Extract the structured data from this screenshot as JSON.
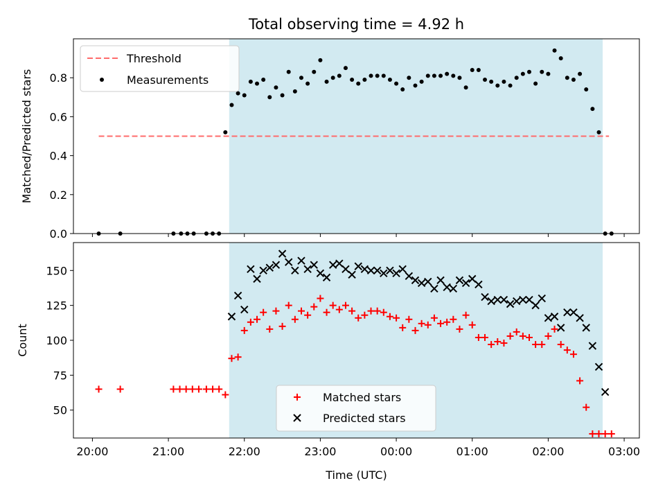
{
  "chart_data": [
    {
      "type": "scatter",
      "title": "Total observing time = 4.92 h",
      "xlabel": "",
      "ylabel": "Matched/Predicted stars",
      "ylim": [
        0,
        1.0
      ],
      "yticks": [
        0.0,
        0.2,
        0.4,
        0.6,
        0.8
      ],
      "ytick_labels": [
        "0.0",
        "0.2",
        "0.4",
        "0.6",
        "0.8"
      ],
      "shaded_span": {
        "start": "21:48",
        "end": "02:43",
        "color": "#add8e6"
      },
      "legend": {
        "placement": "top-left",
        "entries": [
          "Threshold",
          "Measurements"
        ]
      },
      "series": [
        {
          "name": "Threshold",
          "style": "dashed-line",
          "color": "#ff6b6b",
          "x": [
            "20:05",
            "02:48"
          ],
          "y": [
            0.5,
            0.5
          ]
        },
        {
          "name": "Measurements",
          "style": "dot",
          "color": "#000000",
          "x": [
            "20:05",
            "20:22",
            "21:04",
            "21:10",
            "21:15",
            "21:20",
            "21:30",
            "21:35",
            "21:40",
            "21:45",
            "21:50",
            "21:55",
            "22:00",
            "22:05",
            "22:10",
            "22:15",
            "22:20",
            "22:25",
            "22:30",
            "22:35",
            "22:40",
            "22:45",
            "22:50",
            "22:55",
            "23:00",
            "23:05",
            "23:10",
            "23:15",
            "23:20",
            "23:25",
            "23:30",
            "23:35",
            "23:40",
            "23:45",
            "23:50",
            "23:55",
            "00:00",
            "00:05",
            "00:10",
            "00:15",
            "00:20",
            "00:25",
            "00:30",
            "00:35",
            "00:40",
            "00:45",
            "00:50",
            "00:55",
            "01:00",
            "01:05",
            "01:10",
            "01:15",
            "01:20",
            "01:25",
            "01:30",
            "01:35",
            "01:40",
            "01:45",
            "01:50",
            "01:55",
            "02:00",
            "02:05",
            "02:10",
            "02:15",
            "02:20",
            "02:25",
            "02:30",
            "02:35",
            "02:40",
            "02:45",
            "02:50"
          ],
          "y": [
            0.0,
            0.0,
            0.0,
            0.0,
            0.0,
            0.0,
            0.0,
            0.0,
            0.0,
            0.52,
            0.66,
            0.72,
            0.71,
            0.78,
            0.77,
            0.79,
            0.7,
            0.75,
            0.71,
            0.83,
            0.73,
            0.8,
            0.77,
            0.83,
            0.89,
            0.78,
            0.8,
            0.81,
            0.85,
            0.79,
            0.77,
            0.79,
            0.81,
            0.81,
            0.81,
            0.79,
            0.77,
            0.74,
            0.8,
            0.76,
            0.78,
            0.81,
            0.81,
            0.81,
            0.82,
            0.81,
            0.8,
            0.75,
            0.84,
            0.84,
            0.79,
            0.78,
            0.76,
            0.78,
            0.76,
            0.8,
            0.82,
            0.83,
            0.77,
            0.83,
            0.82,
            0.94,
            0.9,
            0.8,
            0.79,
            0.82,
            0.74,
            0.64,
            0.52,
            0.0,
            0.0
          ]
        }
      ]
    },
    {
      "type": "scatter",
      "title": "",
      "xlabel": "Time (UTC)",
      "ylabel": "Count",
      "ylim": [
        30,
        170
      ],
      "yticks": [
        50,
        75,
        100,
        125,
        150
      ],
      "ytick_labels": [
        "50",
        "75",
        "100",
        "125",
        "150"
      ],
      "xtick_labels": [
        "20:00",
        "21:00",
        "22:00",
        "23:00",
        "00:00",
        "01:00",
        "02:00",
        "03:00"
      ],
      "shaded_span": {
        "start": "21:48",
        "end": "02:43",
        "color": "#add8e6"
      },
      "legend": {
        "placement": "bottom-center",
        "entries": [
          "Matched stars",
          "Predicted stars"
        ]
      },
      "series": [
        {
          "name": "Matched stars",
          "marker": "+",
          "color": "#ff0000",
          "x": [
            "20:05",
            "20:22",
            "21:04",
            "21:09",
            "21:14",
            "21:19",
            "21:24",
            "21:30",
            "21:35",
            "21:40",
            "21:45",
            "21:50",
            "21:55",
            "22:00",
            "22:05",
            "22:10",
            "22:15",
            "22:20",
            "22:25",
            "22:30",
            "22:35",
            "22:40",
            "22:45",
            "22:50",
            "22:55",
            "23:00",
            "23:05",
            "23:10",
            "23:15",
            "23:20",
            "23:25",
            "23:30",
            "23:35",
            "23:40",
            "23:45",
            "23:50",
            "23:55",
            "00:00",
            "00:05",
            "00:10",
            "00:15",
            "00:20",
            "00:25",
            "00:30",
            "00:35",
            "00:40",
            "00:45",
            "00:50",
            "00:55",
            "01:00",
            "01:05",
            "01:10",
            "01:15",
            "01:20",
            "01:25",
            "01:30",
            "01:35",
            "01:40",
            "01:45",
            "01:50",
            "01:55",
            "02:00",
            "02:05",
            "02:10",
            "02:15",
            "02:20",
            "02:25",
            "02:30",
            "02:35",
            "02:40",
            "02:45",
            "02:50"
          ],
          "y": [
            65,
            65,
            65,
            65,
            65,
            65,
            65,
            65,
            65,
            65,
            61,
            87,
            88,
            107,
            113,
            115,
            120,
            108,
            121,
            110,
            125,
            115,
            121,
            118,
            124,
            130,
            120,
            125,
            122,
            125,
            121,
            116,
            118,
            121,
            121,
            120,
            117,
            116,
            109,
            115,
            107,
            112,
            111,
            116,
            112,
            113,
            115,
            108,
            118,
            111,
            102,
            102,
            97,
            99,
            98,
            103,
            106,
            103,
            102,
            97,
            97,
            103,
            108,
            97,
            93,
            90,
            71,
            52,
            33,
            33,
            33,
            33
          ]
        },
        {
          "name": "Predicted stars",
          "marker": "x",
          "color": "#000000",
          "x": [
            "21:50",
            "21:55",
            "22:00",
            "22:05",
            "22:10",
            "22:15",
            "22:20",
            "22:25",
            "22:30",
            "22:35",
            "22:40",
            "22:45",
            "22:50",
            "22:55",
            "23:00",
            "23:05",
            "23:10",
            "23:15",
            "23:20",
            "23:25",
            "23:30",
            "23:35",
            "23:40",
            "23:45",
            "23:50",
            "23:55",
            "00:00",
            "00:05",
            "00:10",
            "00:15",
            "00:20",
            "00:25",
            "00:30",
            "00:35",
            "00:40",
            "00:45",
            "00:50",
            "00:55",
            "01:00",
            "01:05",
            "01:10",
            "01:15",
            "01:20",
            "01:25",
            "01:30",
            "01:35",
            "01:40",
            "01:45",
            "01:50",
            "01:55",
            "02:00",
            "02:05",
            "02:10",
            "02:15",
            "02:20",
            "02:25",
            "02:30",
            "02:35",
            "02:40",
            "02:45"
          ],
          "y": [
            117,
            132,
            122,
            151,
            144,
            150,
            152,
            154,
            162,
            156,
            150,
            157,
            151,
            154,
            148,
            145,
            154,
            155,
            151,
            147,
            153,
            151,
            150,
            150,
            148,
            150,
            148,
            151,
            146,
            143,
            141,
            142,
            137,
            143,
            138,
            137,
            143,
            141,
            144,
            140,
            131,
            128,
            129,
            129,
            126,
            128,
            129,
            129,
            125,
            130,
            116,
            117,
            109,
            120,
            120,
            116,
            109,
            96,
            81,
            63
          ]
        }
      ]
    }
  ]
}
